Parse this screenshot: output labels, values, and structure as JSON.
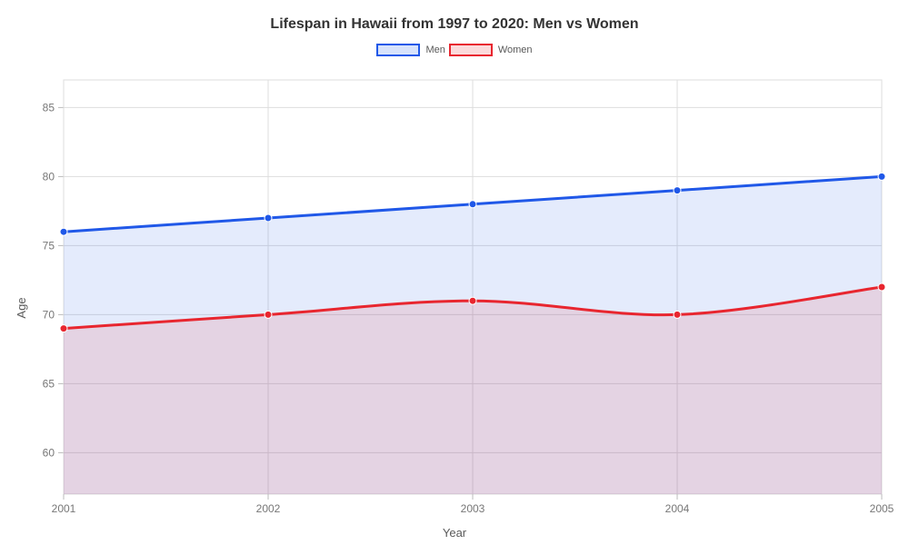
{
  "chart": {
    "type": "line-area",
    "title": "Lifespan in Hawaii from 1997 to 2020: Men vs Women",
    "title_fontsize": 16,
    "title_color": "#333333",
    "xlabel": "Year",
    "ylabel": "Age",
    "axis_label_color": "#595959",
    "axis_label_fontsize": 13,
    "background_color": "#ffffff",
    "plot_background": "#ffffff",
    "grid_color": "#dddddd",
    "tick_label_color": "#777777",
    "tick_label_fontsize": 12,
    "x_categories": [
      "2001",
      "2002",
      "2003",
      "2004",
      "2005"
    ],
    "ylim": [
      57,
      87
    ],
    "yticks": [
      60,
      65,
      70,
      75,
      80,
      85
    ],
    "legend_position": "top-center",
    "series": [
      {
        "name": "Men",
        "values": [
          76,
          77,
          78,
          79,
          80
        ],
        "line_color": "#2058e8",
        "fill_color": "#2058e8",
        "fill_opacity": 0.12,
        "line_width": 3,
        "marker_radius": 4
      },
      {
        "name": "Women",
        "values": [
          69,
          70,
          71,
          70,
          72
        ],
        "line_color": "#e8262f",
        "fill_color": "#e8262f",
        "fill_opacity": 0.12,
        "line_width": 3,
        "marker_radius": 4
      }
    ],
    "legend_swatch": {
      "men_border": "#2058e8",
      "men_fill": "#d7e2fb",
      "women_border": "#e8262f",
      "women_fill": "#fbdadb"
    }
  }
}
